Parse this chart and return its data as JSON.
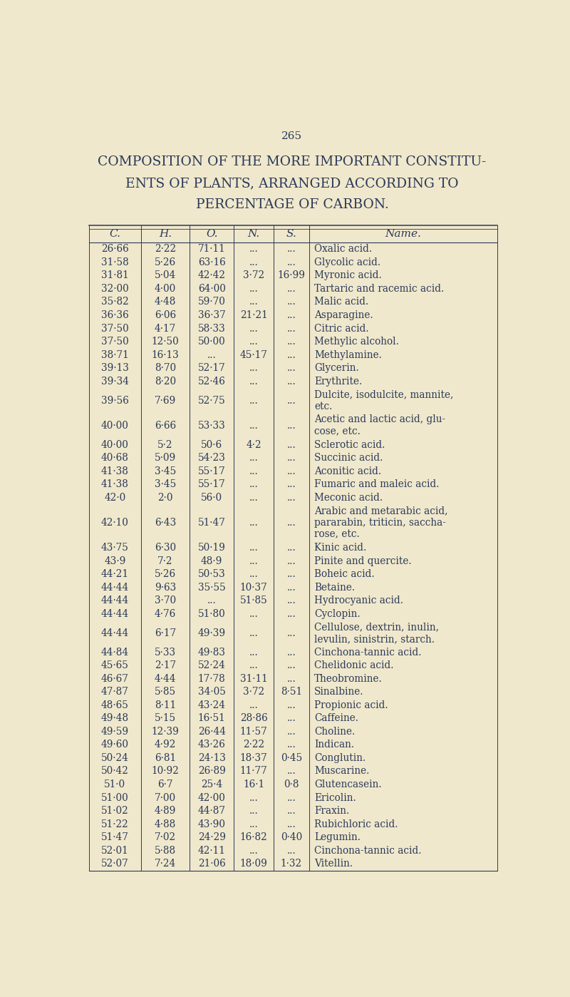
{
  "page_number": "265",
  "title_lines": [
    "COMPOSITION OF THE MORE IMPORTANT CONSTITU-",
    "ENTS OF PLANTS, ARRANGED ACCORDING TO",
    "PERCENTAGE OF CARBON."
  ],
  "col_headers": [
    "C.",
    "H.",
    "O.",
    "N.",
    "S.",
    "Name."
  ],
  "rows": [
    {
      "C": "26·66",
      "H": "2·22",
      "O": "71·11",
      "N": "...",
      "S": "...",
      "Name": "Oxalic acid."
    },
    {
      "C": "31·58",
      "H": "5·26",
      "O": "63·16",
      "N": "...",
      "S": "...",
      "Name": "Glycolic acid."
    },
    {
      "C": "31·81",
      "H": "5·04",
      "O": "42·42",
      "N": "3·72",
      "S": "16·99",
      "Name": "Myronic acid."
    },
    {
      "C": "32·00",
      "H": "4·00",
      "O": "64·00",
      "N": "...",
      "S": "...",
      "Name": "Tartaric and racemic acid."
    },
    {
      "C": "35·82",
      "H": "4·48",
      "O": "59·70",
      "N": "...",
      "S": "...",
      "Name": "Malic acid."
    },
    {
      "C": "36·36",
      "H": "6·06",
      "O": "36·37",
      "N": "21·21",
      "S": "...",
      "Name": "Asparagine."
    },
    {
      "C": "37·50",
      "H": "4·17",
      "O": "58·33",
      "N": "...",
      "S": "...",
      "Name": "Citric acid."
    },
    {
      "C": "37·50",
      "H": "12·50",
      "O": "50·00",
      "N": "...",
      "S": "...",
      "Name": "Methylic alcohol."
    },
    {
      "C": "38·71",
      "H": "16·13",
      "O": "...",
      "N": "45·17",
      "S": "...",
      "Name": "Methylamine."
    },
    {
      "C": "39·13",
      "H": "8·70",
      "O": "52·17",
      "N": "...",
      "S": "...",
      "Name": "Glycerin."
    },
    {
      "C": "39·34",
      "H": "8·20",
      "O": "52·46",
      "N": "...",
      "S": "...",
      "Name": "Erythrite."
    },
    {
      "C": "39·56",
      "H": "7·69",
      "O": "52·75",
      "N": "...",
      "S": "...",
      "Name": "Dulcite, isodulcite, mannite,\netc."
    },
    {
      "C": "40·00",
      "H": "6·66",
      "O": "53·33",
      "N": "...",
      "S": "...",
      "Name": "Acetic and lactic acid, glu-\ncose, etc."
    },
    {
      "C": "40·00",
      "H": "5·2",
      "O": "50·6",
      "N": "4·2",
      "S": "...",
      "Name": "Sclerotic acid."
    },
    {
      "C": "40·68",
      "H": "5·09",
      "O": "54·23",
      "N": "...",
      "S": "...",
      "Name": "Succinic acid."
    },
    {
      "C": "41·38",
      "H": "3·45",
      "O": "55·17",
      "N": "...",
      "S": "...",
      "Name": "Aconitic acid."
    },
    {
      "C": "41·38",
      "H": "3·45",
      "O": "55·17",
      "N": "...",
      "S": "...",
      "Name": "Fumaric and maleic acid."
    },
    {
      "C": "42·0",
      "H": "2·0",
      "O": "56·0",
      "N": "...",
      "S": "...",
      "Name": "Meconic acid."
    },
    {
      "C": "42·10",
      "H": "6·43",
      "O": "51·47",
      "N": "...",
      "S": "...",
      "Name": "Arabic and metarabic acid,\npararabin, triticin, saccha-\nrose, etc."
    },
    {
      "C": "43·75",
      "H": "6·30",
      "O": "50·19",
      "N": "...",
      "S": "...",
      "Name": "Kinic acid."
    },
    {
      "C": "43·9",
      "H": "7·2",
      "O": "48·9",
      "N": "...",
      "S": "...",
      "Name": "Pinite and quercite."
    },
    {
      "C": "44·21",
      "H": "5·26",
      "O": "50·53",
      "N": "...",
      "S": "...",
      "Name": "Boheic acid."
    },
    {
      "C": "44·44",
      "H": "9·63",
      "O": "35·55",
      "N": "10·37",
      "S": "...",
      "Name": "Betaine."
    },
    {
      "C": "44·44",
      "H": "3·70",
      "O": "...",
      "N": "51·85",
      "S": "...",
      "Name": "Hydrocyanic acid."
    },
    {
      "C": "44·44",
      "H": "4·76",
      "O": "51·80",
      "N": "...",
      "S": "...",
      "Name": "Cyclopin."
    },
    {
      "C": "44·44",
      "H": "6·17",
      "O": "49·39",
      "N": "...",
      "S": "...",
      "Name": "Cellulose, dextrin, inulin,\nlevulin, sinistrin, starch."
    },
    {
      "C": "44·84",
      "H": "5·33",
      "O": "49·83",
      "N": "...",
      "S": "...",
      "Name": "Cinchona-tannic acid."
    },
    {
      "C": "45·65",
      "H": "2·17",
      "O": "52·24",
      "N": "...",
      "S": "...",
      "Name": "Chelidonic acid."
    },
    {
      "C": "46·67",
      "H": "4·44",
      "O": "17·78",
      "N": "31·11",
      "S": "...",
      "Name": "Theobromine."
    },
    {
      "C": "47·87",
      "H": "5·85",
      "O": "34·05",
      "N": "3·72",
      "S": "8·51",
      "Name": "Sinalbine."
    },
    {
      "C": "48·65",
      "H": "8·11",
      "O": "43·24",
      "N": "...",
      "S": "...",
      "Name": "Propionic acid."
    },
    {
      "C": "49·48",
      "H": "5·15",
      "O": "16·51",
      "N": "28·86",
      "S": "...",
      "Name": "Caffeine."
    },
    {
      "C": "49·59",
      "H": "12·39",
      "O": "26·44",
      "N": "11·57",
      "S": "...",
      "Name": "Choline."
    },
    {
      "C": "49·60",
      "H": "4·92",
      "O": "43·26",
      "N": "2·22",
      "S": "...",
      "Name": "Indican."
    },
    {
      "C": "50·24",
      "H": "6·81",
      "O": "24·13",
      "N": "18·37",
      "S": "0·45",
      "Name": "Conglutin."
    },
    {
      "C": "50·42",
      "H": "10·92",
      "O": "26·89",
      "N": "11·77",
      "S": "...",
      "Name": "Muscarine."
    },
    {
      "C": "51·0",
      "H": "6·7",
      "O": "25·4",
      "N": "16·1",
      "S": "0·8",
      "Name": "Glutencasein."
    },
    {
      "C": "51·00",
      "H": "7·00",
      "O": "42·00",
      "N": "...",
      "S": "...",
      "Name": "Ericolin."
    },
    {
      "C": "51·02",
      "H": "4·89",
      "O": "44·87",
      "N": "...",
      "S": "...",
      "Name": "Fraxin."
    },
    {
      "C": "51·22",
      "H": "4·88",
      "O": "43·90",
      "N": "...",
      "S": "...",
      "Name": "Rubichloric acid."
    },
    {
      "C": "51·47",
      "H": "7·02",
      "O": "24·29",
      "N": "16·82",
      "S": "0·40",
      "Name": "Legumin."
    },
    {
      "C": "52·01",
      "H": "5·88",
      "O": "42·11",
      "N": "...",
      "S": "...",
      "Name": "Cinchona-tannic acid."
    },
    {
      "C": "52·07",
      "H": "7·24",
      "O": "21·06",
      "N": "18·09",
      "S": "1·32",
      "Name": "Vitellin."
    }
  ],
  "bg_color": "#f0e8cc",
  "text_color": "#2b3a5a",
  "line_color": "#2b3a5a",
  "title_fontsize": 13.5,
  "header_fontsize": 11,
  "data_fontsize": 9.8,
  "page_num_fontsize": 11
}
